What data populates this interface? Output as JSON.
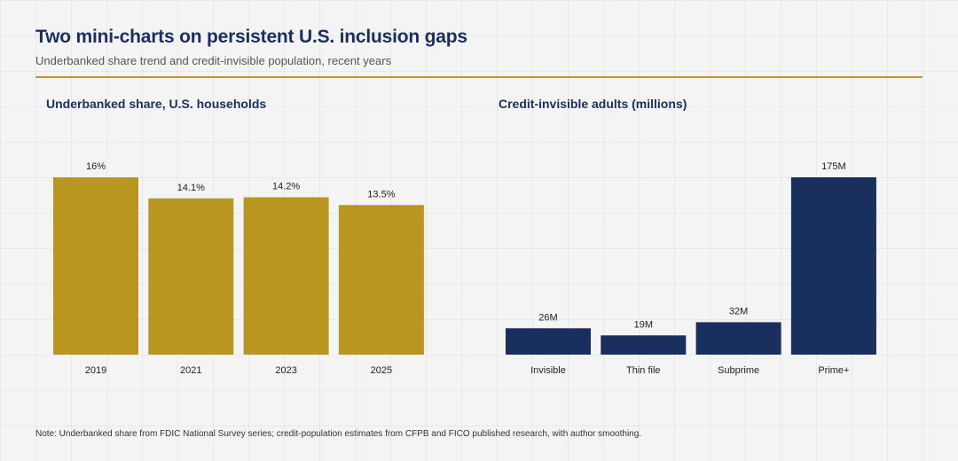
{
  "header": {
    "title": "Two mini-charts on persistent U.S. inclusion gaps",
    "subtitle": "Underbanked share trend and credit-invisible population, recent years"
  },
  "chart_data": [
    {
      "type": "bar",
      "title": "Underbanked share, U.S. households",
      "categories": [
        "2019",
        "2021",
        "2023",
        "2025"
      ],
      "values": [
        16,
        14.1,
        14.2,
        13.5
      ],
      "value_labels": [
        "16%",
        "14.1%",
        "14.2%",
        "13.5%"
      ],
      "ylim": [
        0,
        16
      ],
      "color": "#b8961f",
      "grid": false,
      "legend": "none"
    },
    {
      "type": "bar",
      "title": "Credit-invisible adults (millions)",
      "categories": [
        "Invisible",
        "Thin file",
        "Subprime",
        "Prime+"
      ],
      "values": [
        26,
        19,
        32,
        175
      ],
      "value_labels": [
        "26M",
        "19M",
        "32M",
        "175M"
      ],
      "ylim": [
        0,
        175
      ],
      "color": "#19305e",
      "grid": false,
      "legend": "none"
    }
  ],
  "footer": {
    "note": "Note: Underbanked share from FDIC National Survey series; credit-population estimates from CFPB and FICO published research, with author smoothing."
  }
}
